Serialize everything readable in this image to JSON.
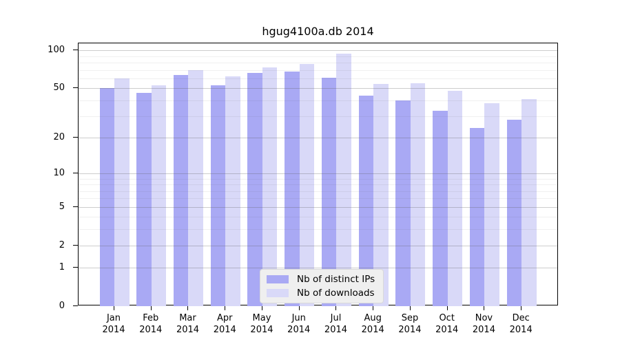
{
  "title": "hgug4100a.db 2014",
  "chart_data": {
    "type": "bar",
    "title": "hgug4100a.db 2014",
    "categories": [
      "Jan",
      "Feb",
      "Mar",
      "Apr",
      "May",
      "Jun",
      "Jul",
      "Aug",
      "Sep",
      "Oct",
      "Nov",
      "Dec"
    ],
    "year": "2014",
    "series": [
      {
        "name": "Nb of distinct IPs",
        "color": "#a9a9f4",
        "values": [
          50,
          46,
          64,
          53,
          66,
          68,
          61,
          44,
          40,
          33,
          24,
          28
        ]
      },
      {
        "name": "Nb of downloads",
        "color": "#d9d9f8",
        "values": [
          60,
          53,
          70,
          62,
          73,
          78,
          94,
          54,
          55,
          48,
          38,
          41
        ]
      }
    ],
    "xlabel": "",
    "ylabel": "",
    "yscale": "log1p",
    "ylim": [
      0,
      114
    ],
    "yticks": [
      0,
      1,
      2,
      5,
      10,
      20,
      50,
      100
    ],
    "minor_yticks": [
      3,
      4,
      6,
      7,
      8,
      9,
      30,
      40,
      60,
      70,
      80,
      90
    ],
    "grid": "on",
    "legend_position": "lower center"
  },
  "legend": {
    "items": [
      {
        "label": "Nb of distinct IPs"
      },
      {
        "label": "Nb of downloads"
      }
    ]
  }
}
